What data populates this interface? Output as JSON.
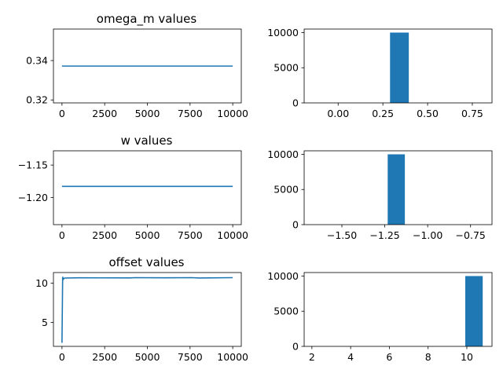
{
  "chart_data": [
    {
      "type": "line",
      "title": "omega_m values",
      "xlim": [
        -500,
        10500
      ],
      "ylim": [
        0.3185,
        0.356
      ],
      "xticks": [
        0,
        2500,
        5000,
        7500,
        10000
      ],
      "xtick_labels": [
        "0",
        "2500",
        "5000",
        "7500",
        "10000"
      ],
      "yticks": [
        0.32,
        0.34
      ],
      "ytick_labels": [
        "0.32",
        "0.34"
      ],
      "series": [
        {
          "color": "#1f77b4",
          "points": [
            [
              0,
              0.3372
            ],
            [
              10000,
              0.3372
            ]
          ]
        }
      ]
    },
    {
      "type": "bar",
      "title": "",
      "xlim": [
        -0.19,
        0.86
      ],
      "ylim": [
        0,
        10500
      ],
      "xticks": [
        0.0,
        0.25,
        0.5,
        0.75
      ],
      "xtick_labels": [
        "0.00",
        "0.25",
        "0.50",
        "0.75"
      ],
      "yticks": [
        0,
        5000,
        10000
      ],
      "ytick_labels": [
        "0",
        "5000",
        "10000"
      ],
      "bars": [
        {
          "x0": 0.29,
          "x1": 0.395,
          "value": 10000,
          "color": "#1f77b4"
        }
      ]
    },
    {
      "type": "line",
      "title": "w values",
      "xlim": [
        -500,
        10500
      ],
      "ylim": [
        -1.242,
        -1.128
      ],
      "xticks": [
        0,
        2500,
        5000,
        7500,
        10000
      ],
      "xtick_labels": [
        "0",
        "2500",
        "5000",
        "7500",
        "10000"
      ],
      "yticks": [
        -1.2,
        -1.15
      ],
      "ytick_labels": [
        "−1.20",
        "−1.15"
      ],
      "series": [
        {
          "color": "#1f77b4",
          "points": [
            [
              0,
              -1.183
            ],
            [
              10000,
              -1.183
            ]
          ]
        }
      ]
    },
    {
      "type": "bar",
      "title": "",
      "xlim": [
        -1.72,
        -0.625
      ],
      "ylim": [
        0,
        10500
      ],
      "xticks": [
        -1.5,
        -1.25,
        -1.0,
        -0.75
      ],
      "xtick_labels": [
        "−1.50",
        "−1.25",
        "−1.00",
        "−0.75"
      ],
      "yticks": [
        0,
        5000,
        10000
      ],
      "ytick_labels": [
        "0",
        "5000",
        "10000"
      ],
      "bars": [
        {
          "x0": -1.233,
          "x1": -1.133,
          "value": 10000,
          "color": "#1f77b4"
        }
      ]
    },
    {
      "type": "line",
      "title": "offset values",
      "xlim": [
        -500,
        10500
      ],
      "ylim": [
        1.95,
        11.35
      ],
      "xticks": [
        0,
        2500,
        5000,
        7500,
        10000
      ],
      "xtick_labels": [
        "0",
        "2500",
        "5000",
        "7500",
        "10000"
      ],
      "yticks": [
        5,
        10
      ],
      "ytick_labels": [
        "5",
        "10"
      ],
      "series": [
        {
          "color": "#1f77b4",
          "points": [
            [
              0,
              2.4
            ],
            [
              40,
              10.8
            ],
            [
              80,
              10.5
            ],
            [
              150,
              10.65
            ],
            [
              1000,
              10.68
            ],
            [
              4000,
              10.67
            ],
            [
              4300,
              10.7
            ],
            [
              6000,
              10.68
            ],
            [
              7600,
              10.7
            ],
            [
              8000,
              10.66
            ],
            [
              10000,
              10.7
            ]
          ]
        }
      ]
    },
    {
      "type": "bar",
      "title": "",
      "xlim": [
        1.6,
        11.3
      ],
      "ylim": [
        0,
        10500
      ],
      "xticks": [
        2,
        4,
        6,
        8,
        10
      ],
      "xtick_labels": [
        "2",
        "4",
        "6",
        "8",
        "10"
      ],
      "yticks": [
        0,
        5000,
        10000
      ],
      "ytick_labels": [
        "0",
        "5000",
        "10000"
      ],
      "bars": [
        {
          "x0": 9.92,
          "x1": 10.82,
          "value": 10000,
          "color": "#1f77b4"
        }
      ]
    }
  ]
}
